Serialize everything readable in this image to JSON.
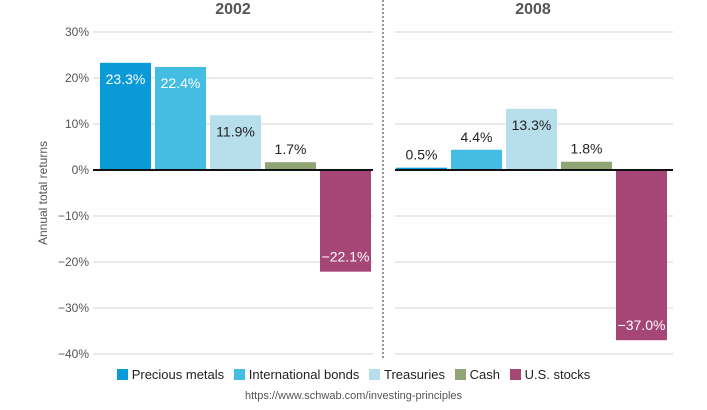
{
  "chart_data": {
    "type": "bar",
    "ylabel": "Annual total returns",
    "ylim": [
      -40,
      30
    ],
    "yticks": [
      30,
      20,
      10,
      0,
      -10,
      -20,
      -30,
      -40
    ],
    "ytick_labels": [
      "30%",
      "20%",
      "10%",
      "0%",
      "−10%",
      "−20%",
      "−30%",
      "−40%"
    ],
    "grid": true,
    "legend_position": "bottom",
    "categories": [
      "Precious metals",
      "International bonds",
      "Treasuries",
      "Cash",
      "U.S. stocks"
    ],
    "colors": [
      "#0a9ad8",
      "#43bde2",
      "#b7dfeb",
      "#8fa576",
      "#a54676"
    ],
    "label_colors": [
      "#ffffff",
      "#ffffff",
      "#222222",
      "#222222",
      "#ffffff"
    ],
    "panels": [
      {
        "title": "2002",
        "values": [
          23.3,
          22.4,
          11.9,
          1.7,
          -22.1
        ],
        "labels": [
          "23.3%",
          "22.4%",
          "11.9%",
          "1.7%",
          "−22.1%"
        ]
      },
      {
        "title": "2008",
        "values": [
          0.5,
          4.4,
          13.3,
          1.8,
          -37.0
        ],
        "labels": [
          "0.5%",
          "4.4%",
          "13.3%",
          "1.8%",
          "−37.0%"
        ]
      }
    ]
  },
  "legend": {
    "items": [
      {
        "label": "Precious metals",
        "color": "#0a9ad8"
      },
      {
        "label": "International bonds",
        "color": "#43bde2"
      },
      {
        "label": "Treasuries",
        "color": "#b7dfeb"
      },
      {
        "label": "Cash",
        "color": "#8fa576"
      },
      {
        "label": "U.S. stocks",
        "color": "#a54676"
      }
    ]
  },
  "source": "https://www.schwab.com/investing-principles"
}
